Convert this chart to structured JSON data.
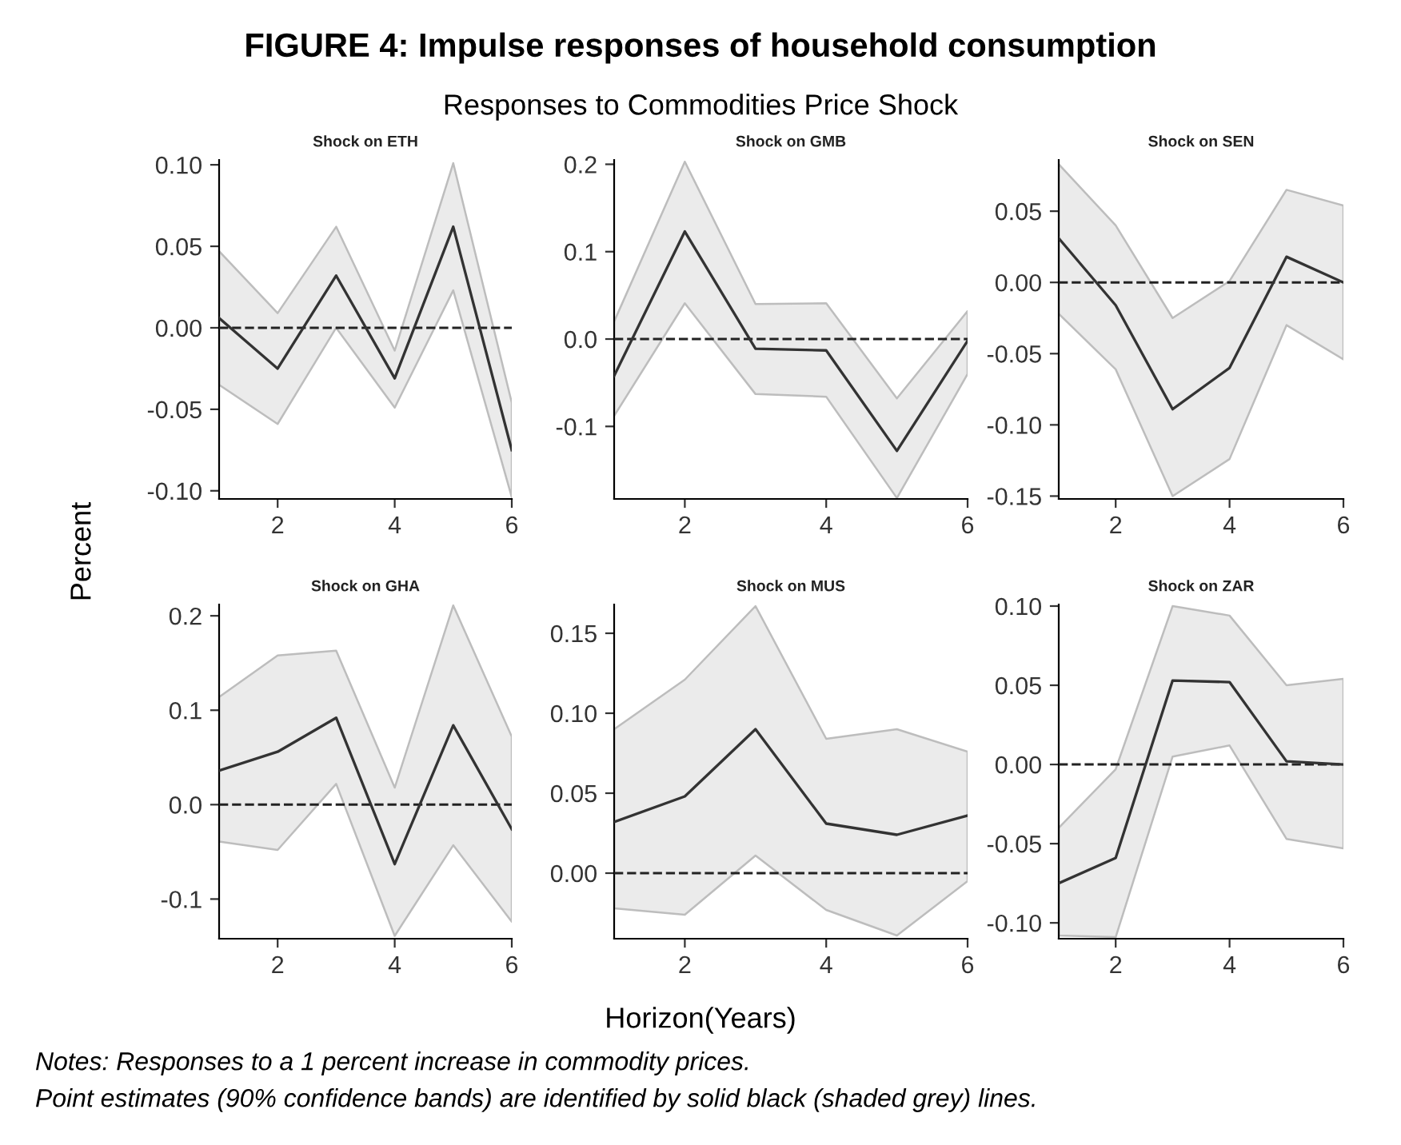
{
  "chart_data": [
    {
      "type": "line",
      "title": "Shock on ETH",
      "annotations": [
        "FIGURE 4: Impulse responses of household consumption",
        "Responses to Commodities Price Shock",
        "Notes: Responses to a 1 percent increase in commodity prices.",
        "Point estimates (90% confidence bands) are identified by solid black (shaded grey) lines."
      ],
      "xlabel": "Horizon(Years)",
      "ylabel": "Percent",
      "x": [
        1,
        2,
        3,
        4,
        5,
        6
      ],
      "xlim": [
        1,
        6
      ],
      "xticks": [
        2,
        4,
        6
      ],
      "ylim": [
        -0.105,
        0.103
      ],
      "yticks": [
        {
          "value": -0.1,
          "label": "-0.10"
        },
        {
          "value": -0.05,
          "label": "-0.05"
        },
        {
          "value": 0,
          "label": "0.00"
        },
        {
          "value": 0.05,
          "label": "0.05"
        },
        {
          "value": 0.1,
          "label": "0.10"
        }
      ],
      "ref_lines": [
        {
          "axis": "y",
          "value": 0,
          "line_style": "dashed",
          "color": "#222222"
        }
      ],
      "series": [
        {
          "color": "#333333",
          "line_style": "solid",
          "values": [
            0.006,
            -0.025,
            0.032,
            -0.031,
            0.062,
            -0.075
          ],
          "lower": [
            -0.035,
            -0.059,
            0.0,
            -0.049,
            0.023,
            -0.104
          ],
          "upper": [
            0.047,
            0.009,
            0.062,
            -0.014,
            0.101,
            -0.046
          ]
        }
      ]
    },
    {
      "type": "line",
      "title": "Shock on GMB",
      "x": [
        1,
        2,
        3,
        4,
        5,
        6
      ],
      "xlim": [
        1,
        6
      ],
      "xticks": [
        2,
        4,
        6
      ],
      "ylim": [
        -0.183,
        0.205
      ],
      "yticks": [
        {
          "value": -0.1,
          "label": "-0.1"
        },
        {
          "value": 0,
          "label": "0.0"
        },
        {
          "value": 0.1,
          "label": "0.1"
        },
        {
          "value": 0.2,
          "label": "0.2"
        }
      ],
      "ref_lines": [
        {
          "axis": "y",
          "value": 0,
          "line_style": "dashed",
          "color": "#222222"
        }
      ],
      "series": [
        {
          "color": "#333333",
          "line_style": "solid",
          "values": [
            -0.042,
            0.123,
            -0.011,
            -0.013,
            -0.128,
            -0.002
          ],
          "lower": [
            -0.088,
            0.041,
            -0.063,
            -0.066,
            -0.182,
            -0.04
          ],
          "upper": [
            0.02,
            0.203,
            0.04,
            0.041,
            -0.068,
            0.032
          ]
        }
      ]
    },
    {
      "type": "line",
      "title": "Shock on SEN",
      "x": [
        1,
        2,
        3,
        4,
        5,
        6
      ],
      "xlim": [
        1,
        6
      ],
      "xticks": [
        2,
        4,
        6
      ],
      "ylim": [
        -0.152,
        0.086
      ],
      "yticks": [
        {
          "value": -0.15,
          "label": "-0.15"
        },
        {
          "value": -0.1,
          "label": "-0.10"
        },
        {
          "value": -0.05,
          "label": "-0.05"
        },
        {
          "value": 0,
          "label": "0.00"
        },
        {
          "value": 0.05,
          "label": "0.05"
        }
      ],
      "ref_lines": [
        {
          "axis": "y",
          "value": 0,
          "line_style": "dashed",
          "color": "#222222"
        }
      ],
      "series": [
        {
          "color": "#333333",
          "line_style": "solid",
          "values": [
            0.031,
            -0.016,
            -0.089,
            -0.06,
            0.018,
            0.0
          ],
          "lower": [
            -0.022,
            -0.061,
            -0.15,
            -0.124,
            -0.03,
            -0.054
          ],
          "upper": [
            0.083,
            0.04,
            -0.025,
            0.001,
            0.065,
            0.054
          ]
        }
      ]
    },
    {
      "type": "line",
      "title": "Shock on GHA",
      "x": [
        1,
        2,
        3,
        4,
        5,
        6
      ],
      "xlim": [
        1,
        6
      ],
      "xticks": [
        2,
        4,
        6
      ],
      "ylim": [
        -0.142,
        0.212
      ],
      "yticks": [
        {
          "value": -0.1,
          "label": "-0.1"
        },
        {
          "value": 0,
          "label": "0.0"
        },
        {
          "value": 0.1,
          "label": "0.1"
        },
        {
          "value": 0.2,
          "label": "0.2"
        }
      ],
      "ref_lines": [
        {
          "axis": "y",
          "value": 0,
          "line_style": "dashed",
          "color": "#222222"
        }
      ],
      "series": [
        {
          "color": "#333333",
          "line_style": "solid",
          "values": [
            0.036,
            0.056,
            0.092,
            -0.063,
            0.084,
            -0.026
          ],
          "lower": [
            -0.039,
            -0.048,
            0.022,
            -0.139,
            -0.043,
            -0.124
          ],
          "upper": [
            0.114,
            0.158,
            0.163,
            0.018,
            0.211,
            0.072
          ]
        }
      ]
    },
    {
      "type": "line",
      "title": "Shock on MUS",
      "x": [
        1,
        2,
        3,
        4,
        5,
        6
      ],
      "xlim": [
        1,
        6
      ],
      "xticks": [
        2,
        4,
        6
      ],
      "ylim": [
        -0.041,
        0.168
      ],
      "yticks": [
        {
          "value": 0,
          "label": "0.00"
        },
        {
          "value": 0.05,
          "label": "0.05"
        },
        {
          "value": 0.1,
          "label": "0.10"
        },
        {
          "value": 0.15,
          "label": "0.15"
        }
      ],
      "ref_lines": [
        {
          "axis": "y",
          "value": 0,
          "line_style": "dashed",
          "color": "#222222"
        }
      ],
      "series": [
        {
          "color": "#333333",
          "line_style": "solid",
          "values": [
            0.032,
            0.048,
            0.09,
            0.031,
            0.024,
            0.036
          ],
          "lower": [
            -0.022,
            -0.026,
            0.011,
            -0.023,
            -0.039,
            -0.005
          ],
          "upper": [
            0.09,
            0.121,
            0.167,
            0.084,
            0.09,
            0.076
          ]
        }
      ]
    },
    {
      "type": "line",
      "title": "Shock on ZAR",
      "x": [
        1,
        2,
        3,
        4,
        5,
        6
      ],
      "xlim": [
        1,
        6
      ],
      "xticks": [
        2,
        4,
        6
      ],
      "ylim": [
        -0.11,
        0.101
      ],
      "yticks": [
        {
          "value": -0.1,
          "label": "-0.10"
        },
        {
          "value": -0.05,
          "label": "-0.05"
        },
        {
          "value": 0,
          "label": "0.00"
        },
        {
          "value": 0.05,
          "label": "0.05"
        },
        {
          "value": 0.1,
          "label": "0.10"
        }
      ],
      "ref_lines": [
        {
          "axis": "y",
          "value": 0,
          "line_style": "dashed",
          "color": "#222222"
        }
      ],
      "series": [
        {
          "color": "#333333",
          "line_style": "solid",
          "values": [
            -0.075,
            -0.059,
            0.053,
            0.052,
            0.002,
            0.0
          ],
          "lower": [
            -0.108,
            -0.109,
            0.005,
            0.012,
            -0.047,
            -0.053
          ],
          "upper": [
            -0.04,
            -0.003,
            0.1,
            0.094,
            0.05,
            0.054
          ]
        }
      ]
    }
  ]
}
